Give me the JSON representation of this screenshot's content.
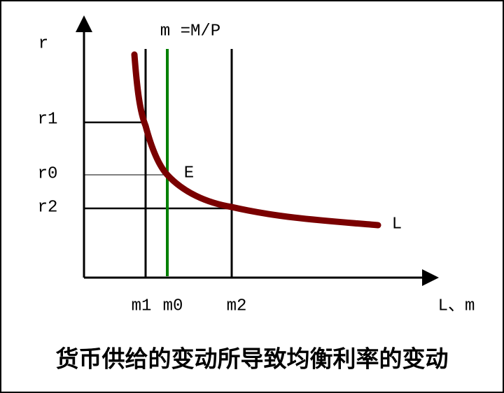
{
  "axes": {
    "y_label": "r",
    "x_label": "L、m"
  },
  "y_marks": [
    "r1",
    "r0",
    "r2"
  ],
  "x_marks": [
    "m1",
    "m0",
    "m2"
  ],
  "supply_label": "m =M/P",
  "equilibrium_label": "E",
  "demand_label": "L",
  "caption": "货币供给的变动所导致均衡利率的变动"
}
